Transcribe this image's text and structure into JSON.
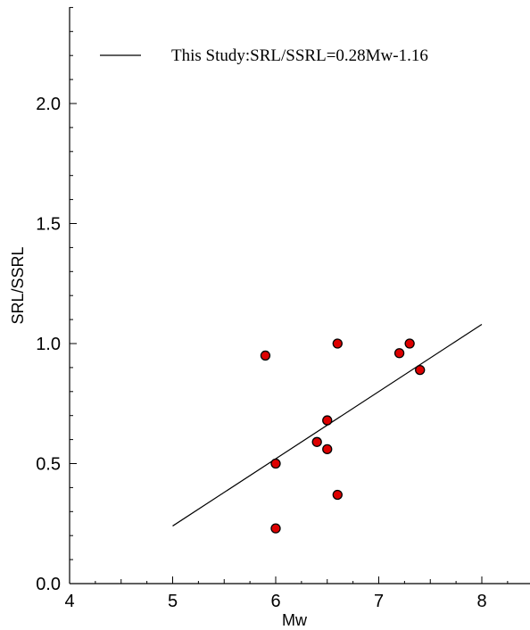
{
  "chart_data": {
    "type": "scatter",
    "title": "",
    "xlabel": "Mw",
    "ylabel": "SRL/SSRL",
    "xlim": [
      4,
      8.5
    ],
    "ylim": [
      0,
      2.4
    ],
    "xticks": [
      "4",
      "5",
      "6",
      "7",
      "8"
    ],
    "yticks": [
      "0.0",
      "0.5",
      "1.0",
      "1.5",
      "2.0"
    ],
    "grid": false,
    "legend_position": "top",
    "points": [
      {
        "x": 5.9,
        "y": 0.95
      },
      {
        "x": 6.0,
        "y": 0.5
      },
      {
        "x": 6.0,
        "y": 0.23
      },
      {
        "x": 6.4,
        "y": 0.59
      },
      {
        "x": 6.5,
        "y": 0.68
      },
      {
        "x": 6.5,
        "y": 0.56
      },
      {
        "x": 6.6,
        "y": 1.0
      },
      {
        "x": 6.6,
        "y": 0.37
      },
      {
        "x": 7.2,
        "y": 0.96
      },
      {
        "x": 7.3,
        "y": 1.0
      },
      {
        "x": 7.4,
        "y": 0.89
      }
    ],
    "point_color": "#dd0000",
    "fit_line": {
      "label": "This Study:SRL/SSRL=0.28Mw-1.16",
      "x": [
        5,
        8
      ],
      "y": [
        0.24,
        1.08
      ],
      "color": "#000000"
    }
  }
}
